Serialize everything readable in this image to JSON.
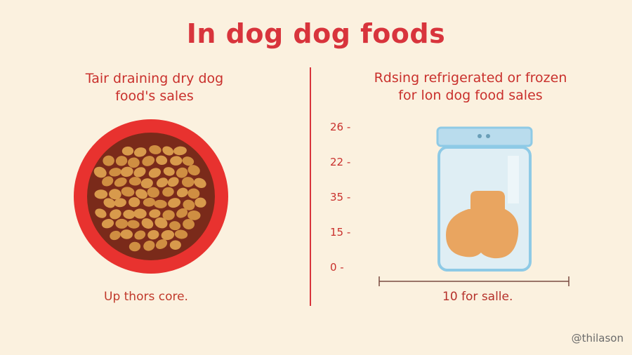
{
  "title": "In dog dog foods",
  "left_panel": {
    "heading_lines": [
      "Tair draining dry dog",
      "food's sales"
    ],
    "caption": "Up thors core."
  },
  "right_panel": {
    "heading_lines": [
      "Rdsing refrigerated or frozen",
      "for lon dog food sales"
    ],
    "y_ticks": [
      "26 -",
      "22 -",
      "35 -",
      "15 -",
      "0 -"
    ],
    "caption": "10 for salle."
  },
  "credit": "@thilason",
  "colors": {
    "background": "#fbf1df",
    "accent_red": "#d8343c",
    "bowl_inner": "#7a2a1a",
    "kibble": "#d89a4c",
    "jar_outline": "#8ecae6",
    "jar_body": "#dfeef4",
    "food_blob": "#e9a560"
  },
  "icons": [
    "dog-bowl-icon",
    "jar-icon"
  ]
}
